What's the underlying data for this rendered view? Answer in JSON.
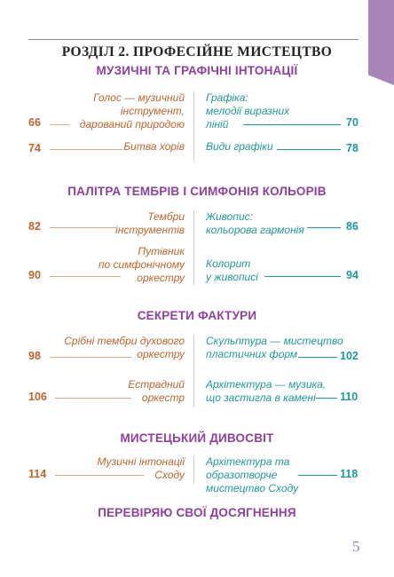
{
  "title": "РОЗДІЛ 2. ПРОФЕСІЙНЕ МИСТЕЦТВО",
  "sections": [
    {
      "heading": "МУЗИЧНІ ТА ГРАФІЧНІ ІНТОНАЦІЇ",
      "rows": [
        {
          "left": {
            "lines": [
              "Голос — музичний",
              "інструмент,",
              "дарований природою"
            ],
            "page": "66"
          },
          "right": {
            "lines": [
              "Графіка:",
              "мелодії виразних",
              "ліній"
            ],
            "page": "70"
          }
        },
        {
          "left": {
            "lines": [
              "Битва хорів"
            ],
            "page": "74"
          },
          "right": {
            "lines": [
              "Види графіки"
            ],
            "page": "78"
          }
        }
      ]
    },
    {
      "heading": "ПАЛІТРА ТЕМБРІВ І СИМФОНІЯ КОЛЬОРІВ",
      "rows": [
        {
          "left": {
            "lines": [
              "Тембри",
              "інструментів"
            ],
            "page": "82"
          },
          "right": {
            "lines": [
              "Живопис:",
              "кольорова гармонія"
            ],
            "page": "86"
          }
        },
        {
          "left": {
            "lines": [
              "Путівник",
              "по симфонічному",
              "оркестру"
            ],
            "page": "90"
          },
          "right": {
            "lines": [
              "Колорит",
              "у живописі"
            ],
            "page": "94"
          }
        }
      ]
    },
    {
      "heading": "СЕКРЕТИ ФАКТУРИ",
      "rows": [
        {
          "left": {
            "lines": [
              "Срібні тембри духового",
              "оркестру"
            ],
            "page": "98"
          },
          "right": {
            "lines": [
              "Скульптура — мистецтво",
              "пластичних форм"
            ],
            "page": "102"
          }
        },
        {
          "left": {
            "lines": [
              "Естрадний",
              "оркестр"
            ],
            "page": "106"
          },
          "right": {
            "lines": [
              "Архітектура — музика,",
              "що застигла в камені"
            ],
            "page": "110"
          }
        }
      ]
    },
    {
      "heading": "МИСТЕЦЬКИЙ ДИВОСВІТ",
      "rows": [
        {
          "left": {
            "lines": [
              "Музичні інтонації",
              "Сходу"
            ],
            "page": "114"
          },
          "right": {
            "lines": [
              "Архітектура та образотворче",
              "мистецтво Сходу"
            ],
            "page": "118"
          }
        }
      ]
    },
    {
      "heading": "ПЕРЕВІРЯЮ СВОЇ ДОСЯГНЕННЯ",
      "rows": []
    }
  ],
  "page_number": "5",
  "colors": {
    "heading": "#8e3fa0",
    "left": "#c0642a",
    "right": "#1e9a98",
    "tab": "#a884b8"
  }
}
